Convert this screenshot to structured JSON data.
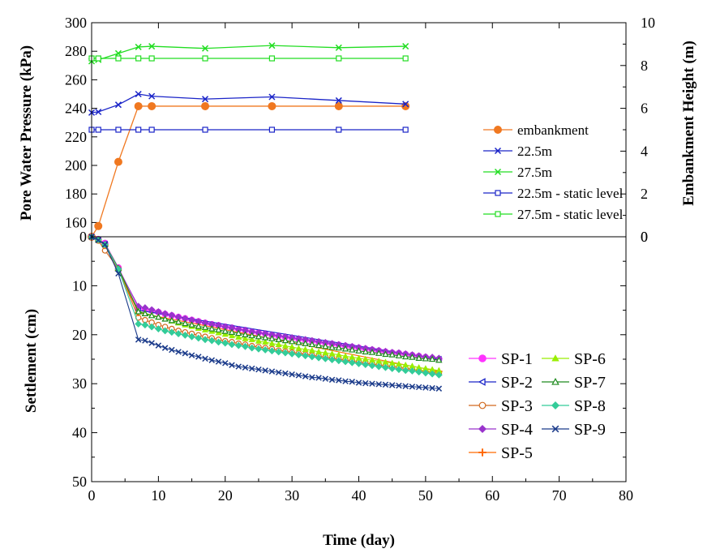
{
  "chart_data": [
    {
      "type": "line",
      "name": "pore-pressure-panel",
      "xlabel": "",
      "ylabel": "Pore Water Pressure (kPa)",
      "y2label": "Embankment Height (m)",
      "xlim": [
        0,
        80
      ],
      "ylim": [
        150,
        300
      ],
      "y2lim": [
        0,
        10
      ],
      "yticks": [
        160,
        180,
        200,
        220,
        240,
        260,
        280,
        300
      ],
      "y2ticks": [
        0,
        2,
        4,
        6,
        8,
        10
      ],
      "legend_position": "right",
      "series": [
        {
          "name": "embankment",
          "axis": "right",
          "color": "#f07820",
          "marker": "circle-filled",
          "x": [
            0,
            1,
            4,
            7,
            9,
            17,
            27,
            37,
            47
          ],
          "y": [
            0,
            0.5,
            3.5,
            6.1,
            6.1,
            6.1,
            6.1,
            6.1,
            6.1
          ]
        },
        {
          "name": "22.5m",
          "axis": "left",
          "color": "#1a24c8",
          "marker": "x",
          "x": [
            0,
            1,
            4,
            7,
            9,
            17,
            27,
            37,
            47
          ],
          "y": [
            237,
            237.5,
            242.5,
            250,
            248.5,
            246.5,
            248,
            245.5,
            243
          ]
        },
        {
          "name": "27.5m",
          "axis": "left",
          "color": "#22dd22",
          "marker": "x",
          "x": [
            0,
            1,
            4,
            7,
            9,
            17,
            27,
            37,
            47
          ],
          "y": [
            273,
            274,
            278.5,
            283,
            283.5,
            282,
            284,
            282.5,
            283.5
          ]
        },
        {
          "name": "22.5m - static level",
          "axis": "left",
          "color": "#1a24c8",
          "marker": "square-open",
          "x": [
            0,
            1,
            4,
            7,
            9,
            17,
            27,
            37,
            47
          ],
          "y": [
            225,
            225,
            225,
            225,
            225,
            225,
            225,
            225,
            225
          ]
        },
        {
          "name": "27.5m - static level",
          "axis": "left",
          "color": "#22dd22",
          "marker": "square-open",
          "x": [
            0,
            1,
            4,
            7,
            9,
            17,
            27,
            37,
            47
          ],
          "y": [
            275,
            275,
            275,
            275,
            275,
            275,
            275,
            275,
            275
          ]
        }
      ]
    },
    {
      "type": "line",
      "name": "settlement-panel",
      "xlabel": "Time (day)",
      "ylabel": "Settlement (cm)",
      "xlim": [
        0,
        80
      ],
      "ylim": [
        0,
        50
      ],
      "xticks": [
        0,
        10,
        20,
        30,
        40,
        50,
        60,
        70,
        80
      ],
      "yticks": [
        0,
        10,
        20,
        30,
        40,
        50
      ],
      "y_inverted": true,
      "legend_position": "right",
      "series": [
        {
          "name": "SP-1",
          "color": "#ff33ff",
          "marker": "circle-filled",
          "x": [
            0,
            1,
            2,
            4,
            7,
            8,
            9,
            10,
            11,
            12,
            13,
            14,
            15,
            16,
            17,
            18,
            19,
            20,
            21,
            22,
            23,
            24,
            25,
            26,
            27,
            28,
            29,
            30,
            31,
            32,
            33,
            34,
            35,
            36,
            37,
            38,
            39,
            40,
            41,
            42,
            43,
            44,
            45,
            46,
            47,
            48,
            49,
            50,
            51,
            52
          ],
          "y": [
            0,
            0.5,
            1.3,
            6.3,
            14.5,
            14.8,
            15.1,
            15.4,
            15.8,
            16.1,
            16.4,
            16.7,
            17.0,
            17.3,
            17.6,
            17.9,
            18.1,
            18.4,
            18.6,
            18.9,
            19.1,
            19.4,
            19.6,
            19.8,
            20.1,
            20.3,
            20.5,
            20.7,
            20.9,
            21.1,
            21.3,
            21.5,
            21.7,
            21.9,
            22.1,
            22.3,
            22.5,
            22.7,
            22.9,
            23.1,
            23.3,
            23.5,
            23.7,
            23.8,
            24.0,
            24.2,
            24.4,
            24.6,
            24.8,
            25.0
          ]
        },
        {
          "name": "SP-2",
          "color": "#1a24c8",
          "marker": "triangle-left",
          "x": [
            0,
            1,
            2,
            4,
            7,
            52
          ],
          "y": [
            0,
            0.6,
            1.5,
            7.0,
            15.0,
            25.0
          ]
        },
        {
          "name": "SP-3",
          "color": "#d2691e",
          "marker": "circle-open",
          "x": [
            0,
            1,
            2,
            4,
            7,
            8,
            9,
            10,
            11,
            12,
            13,
            14,
            15,
            16,
            17,
            18,
            19,
            20,
            21,
            22,
            23,
            24,
            25,
            26,
            27,
            28,
            29,
            30,
            31,
            32,
            33,
            34,
            35,
            36,
            37,
            38,
            39,
            40,
            41,
            42,
            43,
            44,
            45,
            46,
            47,
            48,
            49,
            50,
            51,
            52
          ],
          "y": [
            0,
            0.8,
            2.8,
            6.5,
            16.5,
            17.0,
            17.5,
            18.0,
            18.4,
            18.8,
            19.2,
            19.5,
            19.8,
            20.1,
            20.4,
            20.7,
            21.0,
            21.3,
            21.5,
            21.8,
            22.0,
            22.3,
            22.5,
            22.7,
            22.9,
            23.2,
            23.4,
            23.6,
            23.8,
            24.0,
            24.2,
            24.4,
            24.6,
            24.8,
            25.0,
            25.2,
            25.4,
            25.6,
            25.8,
            26.0,
            26.2,
            26.4,
            26.5,
            26.7,
            26.9,
            27.1,
            27.3,
            27.5,
            27.7,
            27.9
          ]
        },
        {
          "name": "SP-4",
          "color": "#9933cc",
          "marker": "diamond-filled",
          "x": [
            0,
            1,
            2,
            4,
            7,
            8,
            9,
            10,
            11,
            12,
            13,
            14,
            15,
            16,
            17,
            18,
            19,
            20,
            21,
            22,
            23,
            24,
            25,
            26,
            27,
            28,
            29,
            30,
            31,
            32,
            33,
            34,
            35,
            36,
            37,
            38,
            39,
            40,
            41,
            42,
            43,
            44,
            45,
            46,
            47,
            48,
            49,
            50,
            51,
            52
          ],
          "y": [
            0,
            0.6,
            1.5,
            6.5,
            14.2,
            14.5,
            14.9,
            15.3,
            15.7,
            16.0,
            16.4,
            16.7,
            17.0,
            17.3,
            17.6,
            17.9,
            18.1,
            18.4,
            18.6,
            18.9,
            19.1,
            19.4,
            19.6,
            19.8,
            20.0,
            20.2,
            20.4,
            20.6,
            20.8,
            21.0,
            21.2,
            21.4,
            21.6,
            21.8,
            22.0,
            22.2,
            22.4,
            22.6,
            22.8,
            23.0,
            23.2,
            23.4,
            23.6,
            23.7,
            23.9,
            24.1,
            24.3,
            24.5,
            24.6,
            24.8
          ]
        },
        {
          "name": "SP-5",
          "color": "#ff6a00",
          "marker": "plus",
          "x": [
            0,
            1,
            2,
            4,
            7,
            52
          ],
          "y": [
            0,
            0.6,
            1.8,
            6.8,
            15.5,
            27.5
          ]
        },
        {
          "name": "SP-6",
          "color": "#99ee00",
          "marker": "triangle-up-filled",
          "x": [
            0,
            1,
            2,
            4,
            7,
            8,
            9,
            10,
            11,
            12,
            13,
            14,
            15,
            16,
            17,
            18,
            19,
            20,
            21,
            22,
            23,
            24,
            25,
            26,
            27,
            28,
            29,
            30,
            31,
            32,
            33,
            34,
            35,
            36,
            37,
            38,
            39,
            40,
            41,
            42,
            43,
            44,
            45,
            46,
            47,
            48,
            49,
            50,
            51,
            52
          ],
          "y": [
            0,
            0.6,
            1.6,
            6.5,
            15.2,
            15.6,
            16.0,
            16.4,
            16.8,
            17.2,
            17.6,
            18.0,
            18.3,
            18.7,
            19.0,
            19.3,
            19.6,
            19.9,
            20.2,
            20.5,
            20.8,
            21.0,
            21.3,
            21.5,
            21.8,
            22.0,
            22.3,
            22.5,
            22.8,
            23.0,
            23.2,
            23.5,
            23.7,
            23.9,
            24.1,
            24.4,
            24.6,
            24.8,
            25.0,
            25.2,
            25.4,
            25.6,
            25.8,
            26.0,
            26.2,
            26.4,
            26.7,
            26.9,
            27.1,
            27.3
          ]
        },
        {
          "name": "SP-7",
          "color": "#1f8a1f",
          "marker": "triangle-up-open",
          "x": [
            0,
            1,
            2,
            4,
            7,
            8,
            9,
            10,
            11,
            12,
            13,
            14,
            15,
            16,
            17,
            18,
            19,
            20,
            21,
            22,
            23,
            24,
            25,
            26,
            27,
            28,
            29,
            30,
            31,
            32,
            33,
            34,
            35,
            36,
            37,
            38,
            39,
            40,
            41,
            42,
            43,
            44,
            45,
            46,
            47,
            48,
            49,
            50,
            51,
            52
          ],
          "y": [
            0,
            0.6,
            1.5,
            6.4,
            15.3,
            15.7,
            16.1,
            16.4,
            16.8,
            17.1,
            17.4,
            17.7,
            18.0,
            18.3,
            18.5,
            18.8,
            19.0,
            19.3,
            19.5,
            19.7,
            20.0,
            20.2,
            20.4,
            20.6,
            20.8,
            21.0,
            21.2,
            21.4,
            21.6,
            21.8,
            22.0,
            22.2,
            22.4,
            22.6,
            22.7,
            22.9,
            23.1,
            23.3,
            23.5,
            23.6,
            23.8,
            24.0,
            24.1,
            24.3,
            24.5,
            24.6,
            24.8,
            24.9,
            25.0,
            25.2
          ]
        },
        {
          "name": "SP-8",
          "color": "#33cc99",
          "marker": "diamond-filled",
          "x": [
            0,
            1,
            2,
            4,
            7,
            8,
            9,
            10,
            11,
            12,
            13,
            14,
            15,
            16,
            17,
            18,
            19,
            20,
            21,
            22,
            23,
            24,
            25,
            26,
            27,
            28,
            29,
            30,
            31,
            32,
            33,
            34,
            35,
            36,
            37,
            38,
            39,
            40,
            41,
            42,
            43,
            44,
            45,
            46,
            47,
            48,
            49,
            50,
            51,
            52
          ],
          "y": [
            0,
            0.6,
            1.6,
            6.6,
            17.8,
            18.0,
            18.4,
            18.8,
            19.2,
            19.5,
            19.8,
            20.1,
            20.4,
            20.7,
            21.0,
            21.2,
            21.5,
            21.7,
            22.0,
            22.2,
            22.4,
            22.7,
            22.9,
            23.1,
            23.3,
            23.5,
            23.7,
            23.9,
            24.1,
            24.3,
            24.5,
            24.7,
            24.9,
            25.1,
            25.3,
            25.5,
            25.7,
            25.9,
            26.1,
            26.3,
            26.5,
            26.7,
            26.9,
            27.1,
            27.3,
            27.4,
            27.6,
            27.8,
            28.0,
            28.2
          ]
        },
        {
          "name": "SP-9",
          "color": "#1a3a8a",
          "marker": "x",
          "x": [
            0,
            1,
            2,
            4,
            7,
            8,
            9,
            10,
            11,
            12,
            13,
            14,
            15,
            16,
            17,
            18,
            19,
            20,
            21,
            22,
            23,
            24,
            25,
            26,
            27,
            28,
            29,
            30,
            31,
            32,
            33,
            34,
            35,
            36,
            37,
            38,
            39,
            40,
            41,
            42,
            43,
            44,
            45,
            46,
            47,
            48,
            49,
            50,
            51,
            52
          ],
          "y": [
            0,
            0.7,
            1.6,
            7.5,
            21.0,
            21.2,
            21.7,
            22.2,
            22.7,
            23.1,
            23.5,
            23.8,
            24.2,
            24.5,
            24.9,
            25.2,
            25.5,
            25.8,
            26.2,
            26.5,
            26.7,
            26.9,
            27.1,
            27.3,
            27.5,
            27.7,
            27.9,
            28.1,
            28.3,
            28.5,
            28.7,
            28.8,
            29.0,
            29.2,
            29.3,
            29.5,
            29.6,
            29.8,
            29.9,
            30.0,
            30.1,
            30.2,
            30.3,
            30.4,
            30.5,
            30.6,
            30.7,
            30.8,
            30.9,
            31.0
          ]
        }
      ]
    }
  ]
}
